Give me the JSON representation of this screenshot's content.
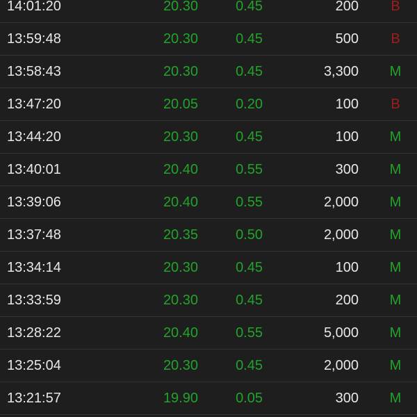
{
  "colors": {
    "up": "#22a32a",
    "buy": "#a01c1c",
    "mid": "#22a32a",
    "text": "#e8e8e8",
    "background": "#1e1e1e"
  },
  "trades": [
    {
      "time": "14:01:20",
      "price": "20.30",
      "change": "0.45",
      "volume": "200",
      "flag": "B"
    },
    {
      "time": "13:59:48",
      "price": "20.30",
      "change": "0.45",
      "volume": "500",
      "flag": "B"
    },
    {
      "time": "13:58:43",
      "price": "20.30",
      "change": "0.45",
      "volume": "3,300",
      "flag": "M"
    },
    {
      "time": "13:47:20",
      "price": "20.05",
      "change": "0.20",
      "volume": "100",
      "flag": "B"
    },
    {
      "time": "13:44:20",
      "price": "20.30",
      "change": "0.45",
      "volume": "100",
      "flag": "M"
    },
    {
      "time": "13:40:01",
      "price": "20.40",
      "change": "0.55",
      "volume": "300",
      "flag": "M"
    },
    {
      "time": "13:39:06",
      "price": "20.40",
      "change": "0.55",
      "volume": "2,000",
      "flag": "M"
    },
    {
      "time": "13:37:48",
      "price": "20.35",
      "change": "0.50",
      "volume": "2,000",
      "flag": "M"
    },
    {
      "time": "13:34:14",
      "price": "20.30",
      "change": "0.45",
      "volume": "100",
      "flag": "M"
    },
    {
      "time": "13:33:59",
      "price": "20.30",
      "change": "0.45",
      "volume": "200",
      "flag": "M"
    },
    {
      "time": "13:28:22",
      "price": "20.40",
      "change": "0.55",
      "volume": "5,000",
      "flag": "M"
    },
    {
      "time": "13:25:04",
      "price": "20.30",
      "change": "0.45",
      "volume": "2,000",
      "flag": "M"
    },
    {
      "time": "13:21:57",
      "price": "19.90",
      "change": "0.05",
      "volume": "300",
      "flag": "M"
    }
  ]
}
